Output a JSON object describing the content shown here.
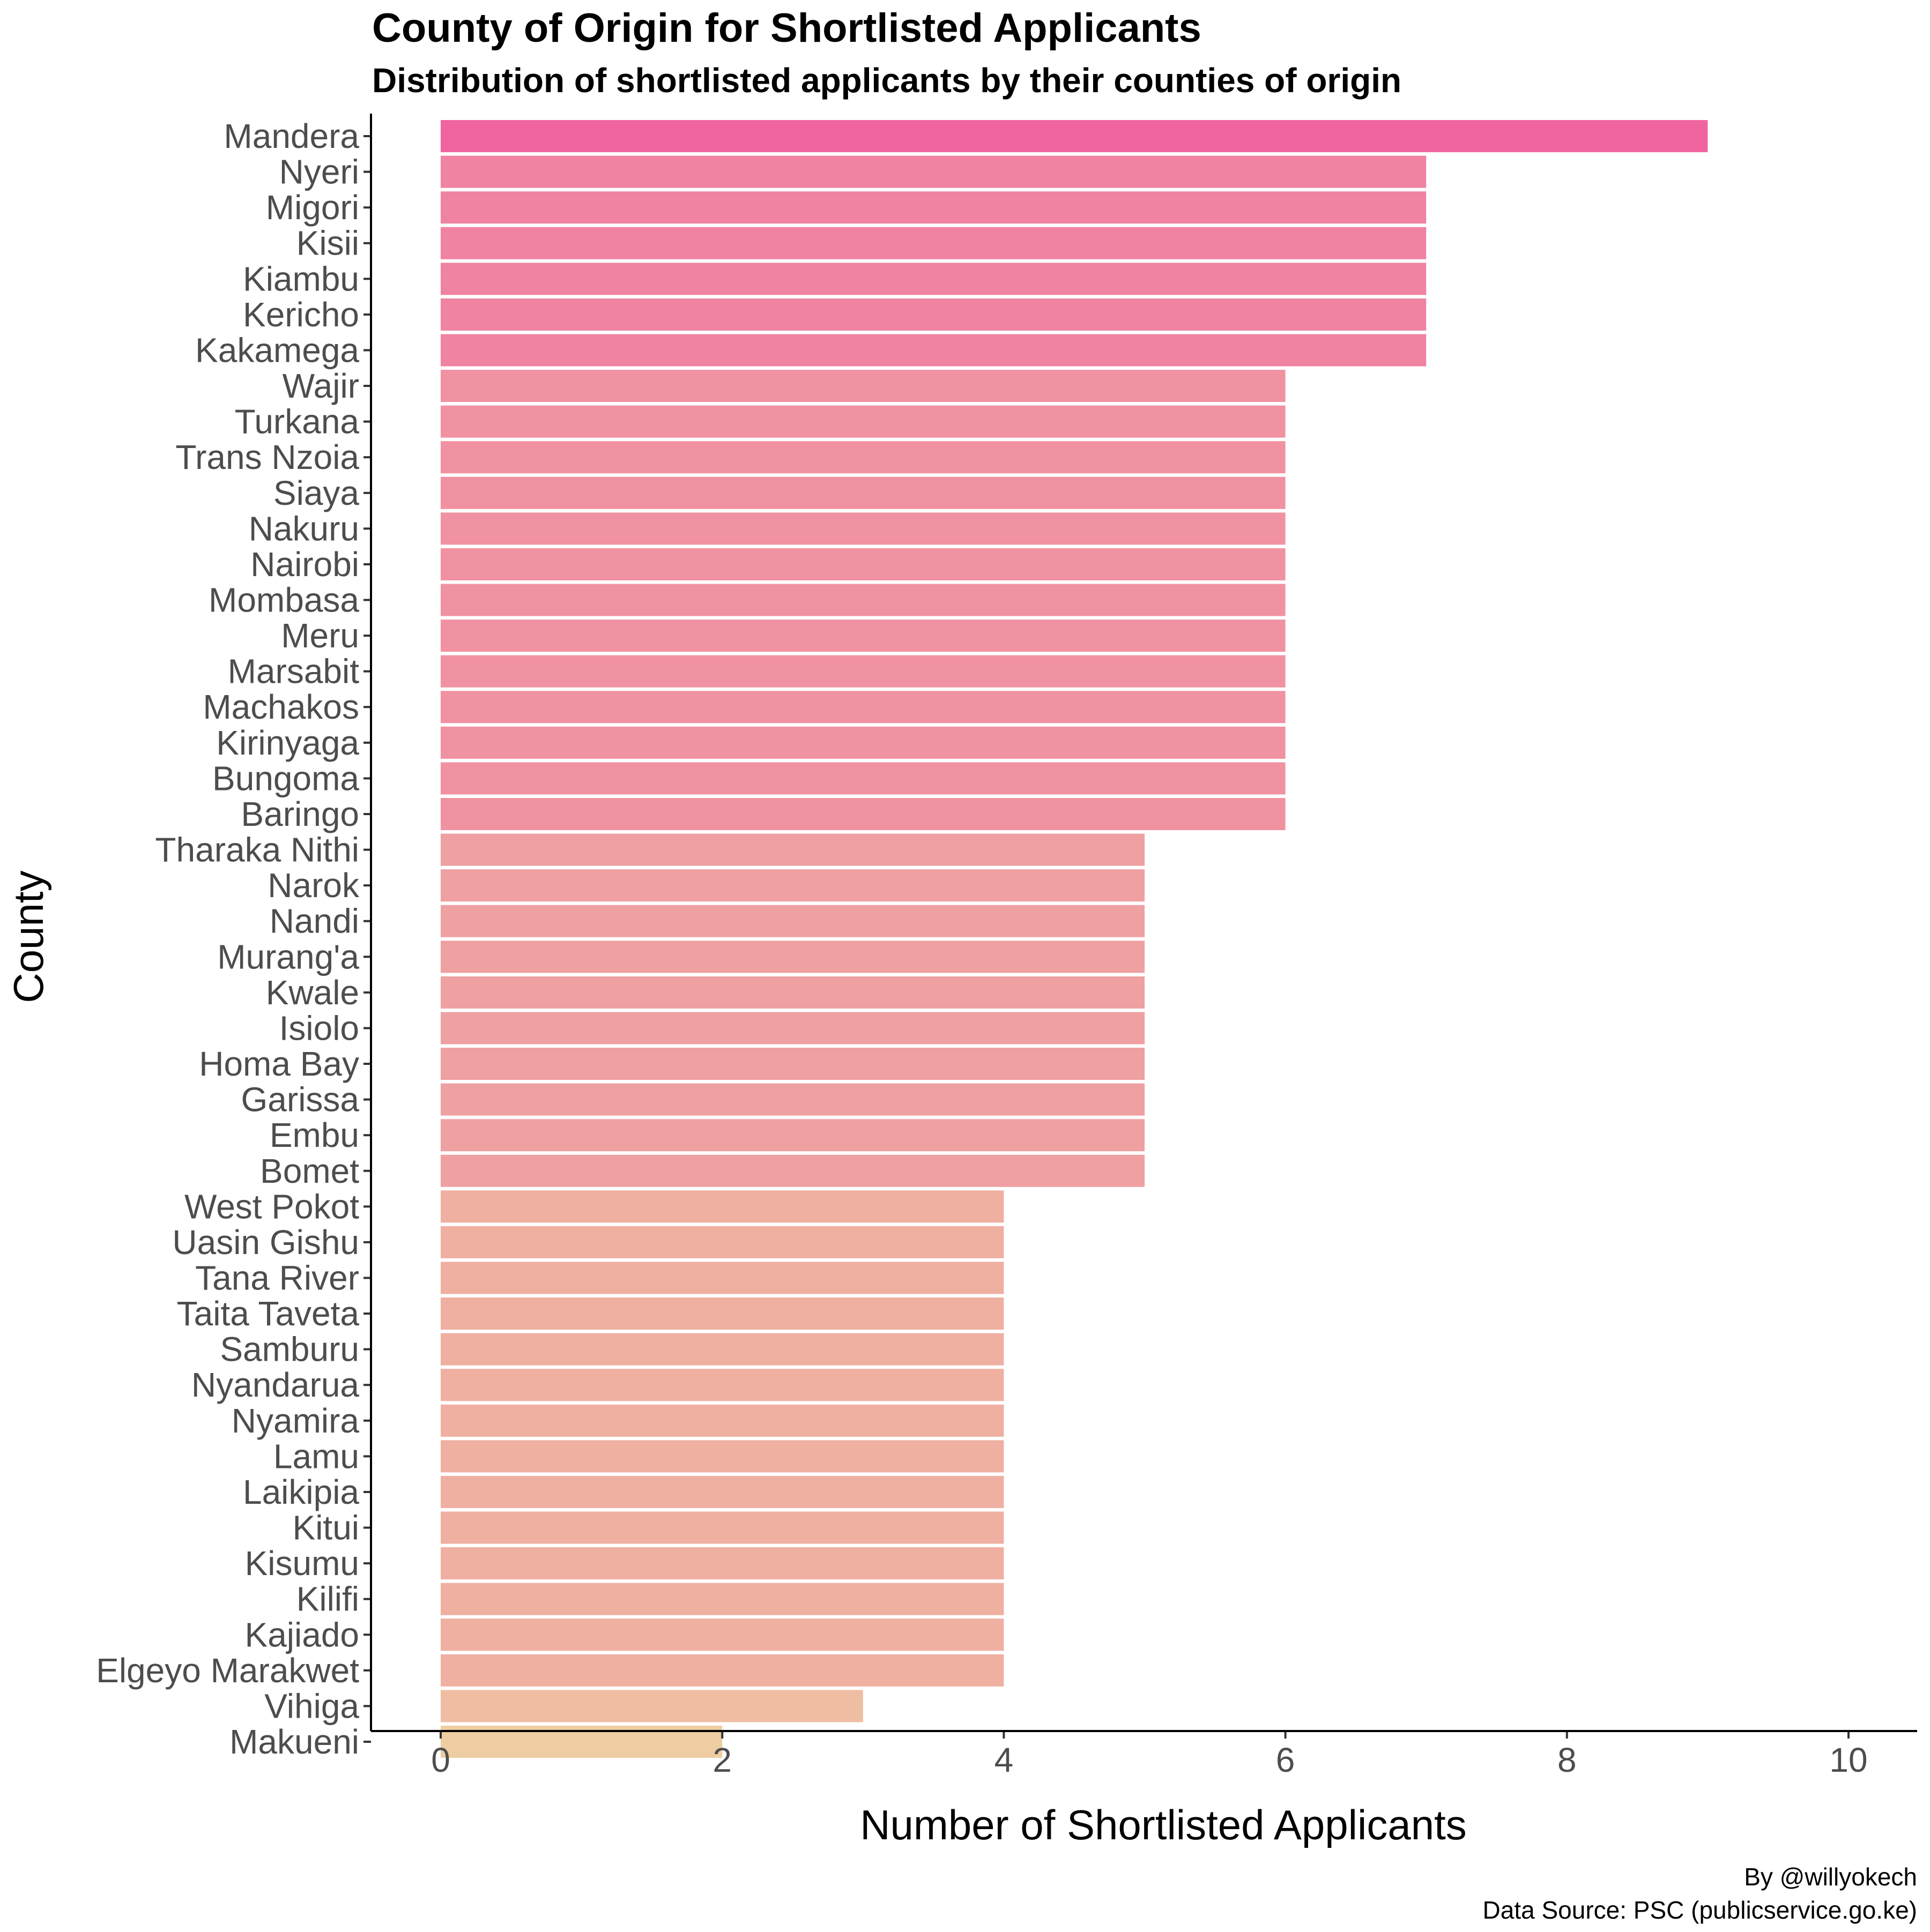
{
  "chart_data": {
    "type": "bar",
    "orientation": "horizontal",
    "title": "County of Origin for Shortlisted Applicants",
    "subtitle": "Distribution of shortlisted applicants by their counties of origin",
    "xlabel": "Number of Shortlisted Applicants",
    "ylabel": "County",
    "xlim": [
      0,
      10
    ],
    "xticks": [
      "0",
      "2",
      "4",
      "6",
      "8",
      "10"
    ],
    "grid": false,
    "legend": "none",
    "caption": [
      "By @willyokech",
      "Data Source: PSC (publicservice.go.ke)"
    ],
    "color_scale": {
      "low": "#EFCDA2",
      "high": "#F065A0"
    },
    "categories": [
      "Mandera",
      "Nyeri",
      "Migori",
      "Kisii",
      "Kiambu",
      "Kericho",
      "Kakamega",
      "Wajir",
      "Turkana",
      "Trans Nzoia",
      "Siaya",
      "Nakuru",
      "Nairobi",
      "Mombasa",
      "Meru",
      "Marsabit",
      "Machakos",
      "Kirinyaga",
      "Bungoma",
      "Baringo",
      "Tharaka Nithi",
      "Narok",
      "Nandi",
      "Murang'a",
      "Kwale",
      "Isiolo",
      "Homa Bay",
      "Garissa",
      "Embu",
      "Bomet",
      "West Pokot",
      "Uasin Gishu",
      "Tana River",
      "Taita Taveta",
      "Samburu",
      "Nyandarua",
      "Nyamira",
      "Lamu",
      "Laikipia",
      "Kitui",
      "Kisumu",
      "Kilifi",
      "Kajiado",
      "Elgeyo Marakwet",
      "Vihiga",
      "Makueni"
    ],
    "values": [
      9,
      7,
      7,
      7,
      7,
      7,
      7,
      6,
      6,
      6,
      6,
      6,
      6,
      6,
      6,
      6,
      6,
      6,
      6,
      6,
      5,
      5,
      5,
      5,
      5,
      5,
      5,
      5,
      5,
      5,
      4,
      4,
      4,
      4,
      4,
      4,
      4,
      4,
      4,
      4,
      4,
      4,
      4,
      4,
      3,
      2
    ]
  }
}
